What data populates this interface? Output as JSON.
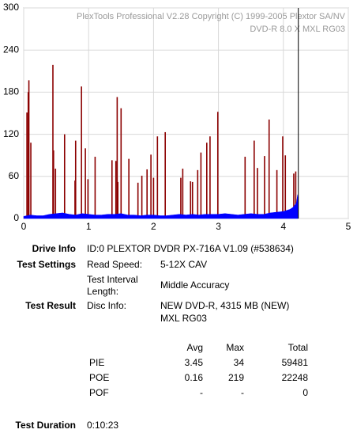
{
  "chart_data": {
    "type": "pie-poe",
    "watermark": [
      "PlexTools Professional V2.28 Copyright (C) 1999-2005 Plextor SA/NV",
      "DVD-R    8.0 X    MXL RG03"
    ],
    "xlim": [
      0,
      5
    ],
    "xticks": [
      0,
      1,
      2,
      3,
      4,
      5
    ],
    "ylim": [
      0,
      300
    ],
    "yticks": [
      0,
      60,
      120,
      180,
      240,
      300
    ],
    "grid": true,
    "end_marker": 4.23,
    "series": [
      {
        "name": "PIE",
        "color": "#0000ff",
        "style": "area",
        "x": [
          0,
          0.1,
          0.2,
          0.3,
          0.4,
          0.5,
          0.6,
          0.7,
          0.8,
          0.9,
          1.0,
          1.1,
          1.2,
          1.3,
          1.4,
          1.5,
          1.6,
          1.7,
          1.8,
          1.9,
          2.0,
          2.1,
          2.2,
          2.3,
          2.4,
          2.5,
          2.6,
          2.7,
          2.8,
          2.9,
          3.0,
          3.1,
          3.2,
          3.3,
          3.4,
          3.5,
          3.6,
          3.7,
          3.8,
          3.9,
          4.0,
          4.1,
          4.15,
          4.2,
          4.22,
          4.23
        ],
        "values": [
          3,
          5,
          4,
          4,
          6,
          7,
          8,
          6,
          5,
          7,
          6,
          5,
          5,
          6,
          6,
          7,
          5,
          5,
          4,
          5,
          5,
          4,
          4,
          5,
          6,
          5,
          6,
          5,
          6,
          6,
          6,
          7,
          6,
          5,
          6,
          7,
          6,
          6,
          8,
          9,
          10,
          13,
          16,
          22,
          34,
          25
        ]
      },
      {
        "name": "POE",
        "color": "#8b0000",
        "style": "spikes",
        "x": [
          0.05,
          0.07,
          0.08,
          0.11,
          0.45,
          0.46,
          0.49,
          0.63,
          0.79,
          0.8,
          0.89,
          0.95,
          0.99,
          1.1,
          1.36,
          1.42,
          1.44,
          1.45,
          1.5,
          1.62,
          1.76,
          1.82,
          1.9,
          1.96,
          2.0,
          2.06,
          2.18,
          2.42,
          2.45,
          2.57,
          2.6,
          2.68,
          2.73,
          2.82,
          2.87,
          2.99,
          3.41,
          3.55,
          3.6,
          3.71,
          3.78,
          3.9,
          3.99,
          4.03,
          4.16,
          4.19
        ],
        "values": [
          151,
          180,
          197,
          108,
          219,
          97,
          71,
          120,
          54,
          111,
          188,
          100,
          56,
          88,
          83,
          82,
          173,
          52,
          157,
          85,
          51,
          61,
          70,
          91,
          58,
          117,
          123,
          58,
          71,
          53,
          52,
          69,
          94,
          108,
          117,
          152,
          88,
          111,
          72,
          89,
          141,
          69,
          117,
          90,
          64,
          67
        ]
      }
    ]
  },
  "info": {
    "drive": {
      "label": "Drive Info",
      "value": "ID:0 PLEXTOR DVDR PX-716A V1.09 (#538634)"
    },
    "settings": {
      "label": "Test Settings",
      "read_speed_label": "Read Speed:",
      "read_speed": "5-12X CAV",
      "interval_label": [
        "Test Interval",
        "Length:"
      ],
      "interval": "Middle Accuracy"
    },
    "result": {
      "label": "Test Result",
      "disc_label": "Disc Info:",
      "disc": [
        "NEW DVD-R, 4315 MB (NEW)",
        "MXL RG03"
      ]
    },
    "table": {
      "header": [
        "Avg",
        "Max",
        "Total"
      ],
      "rows": [
        [
          "PIE",
          3.45,
          34,
          59481
        ],
        [
          "POE",
          0.16,
          219,
          22248
        ],
        [
          "POF",
          "-",
          "-",
          0
        ]
      ]
    },
    "duration": {
      "label": "Test Duration",
      "value": "0:10:23"
    }
  }
}
